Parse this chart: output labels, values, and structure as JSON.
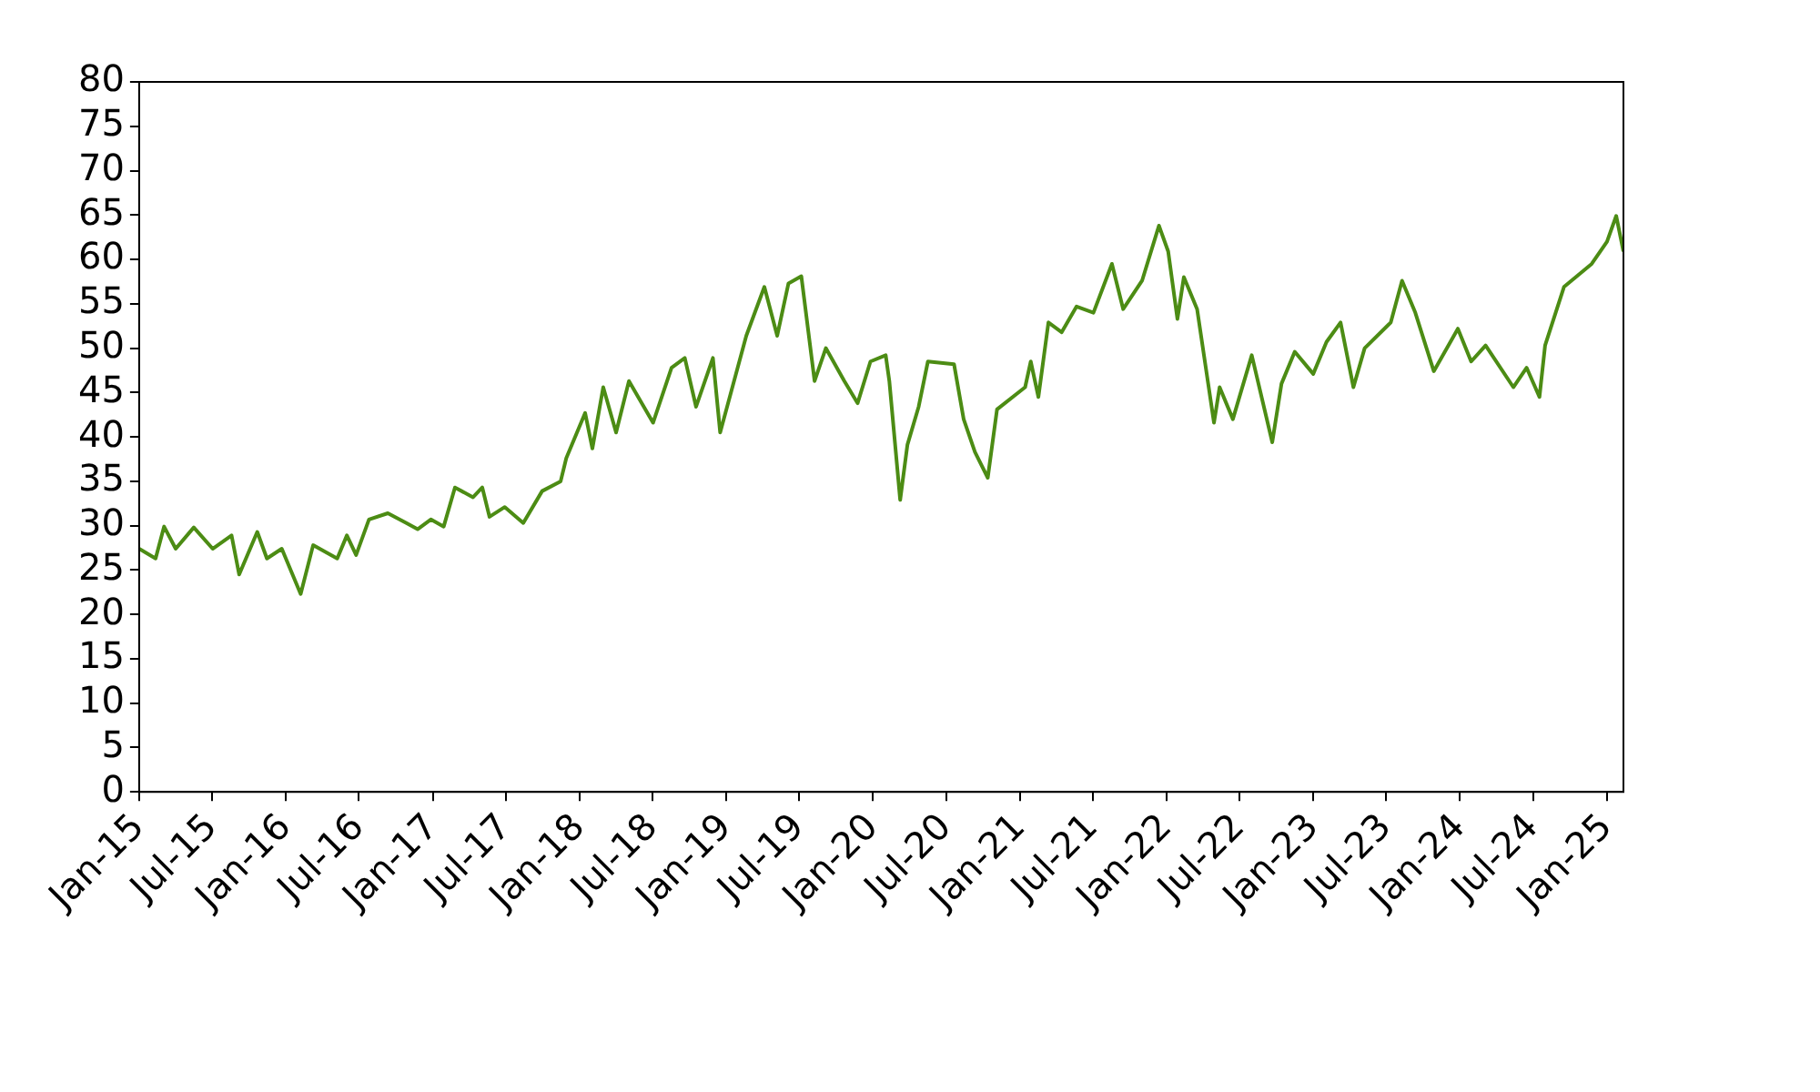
{
  "chart_data": {
    "type": "line",
    "line_style": "solid",
    "marker": "none",
    "xlim": [
      "2015-01-01",
      "2025-02-11"
    ],
    "xticks": [
      {
        "value": "2015-01-01",
        "label": "Jan-15"
      },
      {
        "value": "2015-07-01",
        "label": "Jul-15"
      },
      {
        "value": "2016-01-01",
        "label": "Jan-16"
      },
      {
        "value": "2016-07-01",
        "label": "Jul-16"
      },
      {
        "value": "2017-01-01",
        "label": "Jan-17"
      },
      {
        "value": "2017-07-01",
        "label": "Jul-17"
      },
      {
        "value": "2018-01-01",
        "label": "Jan-18"
      },
      {
        "value": "2018-07-01",
        "label": "Jul-18"
      },
      {
        "value": "2019-01-01",
        "label": "Jan-19"
      },
      {
        "value": "2019-07-01",
        "label": "Jul-19"
      },
      {
        "value": "2020-01-01",
        "label": "Jan-20"
      },
      {
        "value": "2020-07-01",
        "label": "Jul-20"
      },
      {
        "value": "2021-01-01",
        "label": "Jan-21"
      },
      {
        "value": "2021-07-01",
        "label": "Jul-21"
      },
      {
        "value": "2022-01-01",
        "label": "Jan-22"
      },
      {
        "value": "2022-07-01",
        "label": "Jul-22"
      },
      {
        "value": "2023-01-01",
        "label": "Jan-23"
      },
      {
        "value": "2023-07-01",
        "label": "Jul-23"
      },
      {
        "value": "2024-01-01",
        "label": "Jan-24"
      },
      {
        "value": "2024-07-01",
        "label": "Jul-24"
      },
      {
        "value": "2025-01-01",
        "label": "Jan-25"
      }
    ],
    "ylim": [
      0,
      80
    ],
    "yticks": [
      0,
      5,
      10,
      15,
      20,
      25,
      30,
      35,
      40,
      45,
      50,
      55,
      60,
      65,
      70,
      75,
      80
    ],
    "x": [
      "2015-01-01",
      "2015-02-11",
      "2015-03-04",
      "2015-04-02",
      "2015-05-17",
      "2015-07-03",
      "2015-08-19",
      "2015-09-07",
      "2015-10-22",
      "2015-11-15",
      "2015-12-22",
      "2016-02-07",
      "2016-03-09",
      "2016-05-08",
      "2016-06-01",
      "2016-06-24",
      "2016-07-26",
      "2016-09-11",
      "2016-10-27",
      "2016-11-24",
      "2016-12-27",
      "2017-01-28",
      "2017-02-25",
      "2017-04-11",
      "2017-05-04",
      "2017-05-22",
      "2017-06-29",
      "2017-08-14",
      "2017-09-30",
      "2017-11-15",
      "2017-11-29",
      "2018-01-15",
      "2018-02-02",
      "2018-03-01",
      "2018-04-02",
      "2018-05-04",
      "2018-07-03",
      "2018-08-18",
      "2018-09-20",
      "2018-10-18",
      "2018-11-29",
      "2018-12-17",
      "2019-02-20",
      "2019-04-06",
      "2019-05-08",
      "2019-06-05",
      "2019-07-07",
      "2019-08-09",
      "2019-09-06",
      "2019-10-22",
      "2019-11-24",
      "2019-12-26",
      "2020-02-02",
      "2020-02-11",
      "2020-03-09",
      "2020-03-27",
      "2020-04-24",
      "2020-05-17",
      "2020-07-21",
      "2020-08-14",
      "2020-09-11",
      "2020-10-13",
      "2020-11-05",
      "2021-01-14",
      "2021-01-28",
      "2021-02-16",
      "2021-03-13",
      "2021-04-15",
      "2021-05-22",
      "2021-07-03",
      "2021-08-18",
      "2021-09-15",
      "2021-11-01",
      "2021-12-13",
      "2022-01-05",
      "2022-01-28",
      "2022-02-13",
      "2022-03-18",
      "2022-04-29",
      "2022-05-13",
      "2022-06-15",
      "2022-08-01",
      "2022-09-21",
      "2022-10-14",
      "2022-11-16",
      "2023-01-01",
      "2023-02-03",
      "2023-03-10",
      "2023-04-11",
      "2023-05-09",
      "2023-07-13",
      "2023-08-10",
      "2023-09-12",
      "2023-10-28",
      "2023-12-27",
      "2024-01-29",
      "2024-03-05",
      "2024-05-13",
      "2024-06-15",
      "2024-07-17",
      "2024-07-31",
      "2024-09-16",
      "2024-11-24",
      "2025-01-01",
      "2025-01-24",
      "2025-02-11"
    ],
    "series": [
      {
        "color": "#4c8c14",
        "values": [
          27.4,
          26.3,
          29.9,
          27.4,
          29.8,
          27.4,
          28.9,
          24.5,
          29.3,
          26.3,
          27.4,
          22.3,
          27.8,
          26.3,
          28.9,
          26.7,
          30.7,
          31.4,
          30.3,
          29.6,
          30.7,
          29.9,
          34.3,
          33.2,
          34.3,
          31.0,
          32.1,
          30.3,
          33.9,
          35.0,
          37.6,
          42.7,
          38.7,
          45.6,
          40.5,
          46.3,
          41.6,
          47.8,
          48.9,
          43.4,
          48.9,
          40.5,
          51.4,
          56.9,
          51.4,
          57.3,
          58.1,
          46.3,
          50.0,
          46.3,
          43.8,
          48.5,
          49.2,
          46.3,
          32.9,
          39.1,
          43.4,
          48.5,
          48.2,
          42.0,
          38.3,
          35.4,
          43.1,
          45.6,
          48.5,
          44.5,
          52.9,
          51.8,
          54.7,
          54.0,
          59.5,
          54.4,
          57.6,
          63.8,
          60.9,
          53.3,
          58.0,
          54.4,
          41.6,
          45.6,
          42.0,
          49.2,
          39.4,
          46.0,
          49.6,
          47.1,
          50.7,
          52.9,
          45.6,
          50.0,
          52.9,
          57.6,
          54.0,
          47.4,
          52.2,
          48.5,
          50.3,
          45.6,
          47.8,
          44.5,
          50.3,
          56.9,
          59.5,
          62.0,
          64.9,
          60.9
        ]
      }
    ]
  }
}
